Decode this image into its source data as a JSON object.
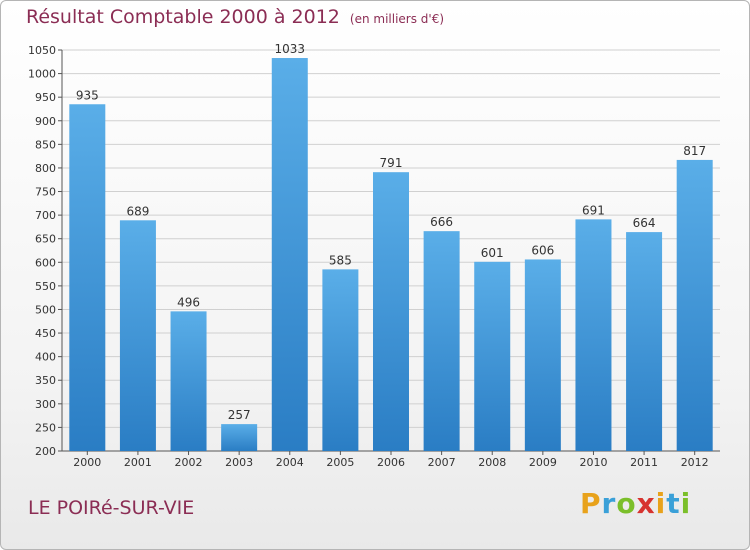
{
  "header": {
    "title": "Résultat Comptable 2000 à 2012",
    "unit": "(en milliers d'€)"
  },
  "footer": {
    "place": "LE POIRé-SUR-VIE",
    "brand_letters": [
      "P",
      "r",
      "o",
      "x",
      "i",
      "t",
      "i"
    ],
    "brand_colors": [
      "#e8a21b",
      "#3aa0d8",
      "#7bbf2a",
      "#d7332f",
      "#e8a21b",
      "#3aa0d8",
      "#7bbf2a"
    ]
  },
  "colors": {
    "bar_top": "#5aaee8",
    "bar_bottom": "#2a7dc4",
    "grid": "#d0d0d0",
    "title": "#8b2d54"
  },
  "chart_data": {
    "type": "bar",
    "categories": [
      "2000",
      "2001",
      "2002",
      "2003",
      "2004",
      "2005",
      "2006",
      "2007",
      "2008",
      "2009",
      "2010",
      "2011",
      "2012"
    ],
    "values": [
      935,
      689,
      496,
      257,
      1033,
      585,
      791,
      666,
      601,
      606,
      691,
      664,
      817
    ],
    "title": "Résultat Comptable 2000 à 2012",
    "subtitle": "(en milliers d'€)",
    "ylim": [
      200,
      1050
    ],
    "yticks": [
      200,
      250,
      300,
      350,
      400,
      450,
      500,
      550,
      600,
      650,
      700,
      750,
      800,
      850,
      900,
      950,
      1000,
      1050
    ],
    "grid": true
  }
}
